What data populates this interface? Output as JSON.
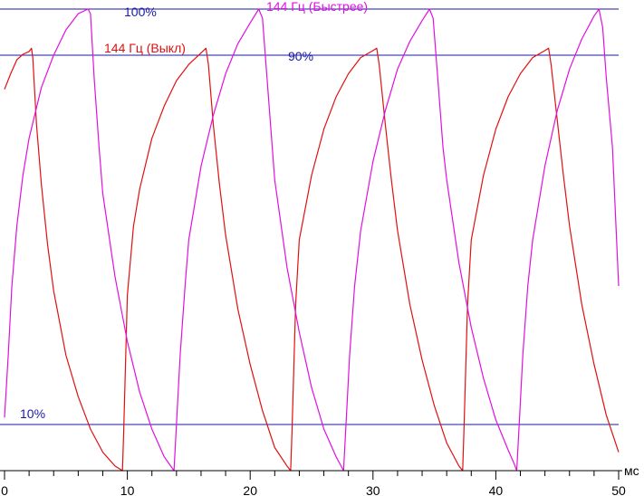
{
  "chart_data": {
    "type": "line",
    "xlim": [
      0,
      50
    ],
    "ylim": [
      0,
      100
    ],
    "x_ticks": [
      "0",
      "10",
      "20",
      "30",
      "40",
      "50"
    ],
    "x_unit": "мс",
    "grid": false,
    "reference_lines": [
      {
        "label": "100%",
        "value": 100,
        "color": "#1a1aa6"
      },
      {
        "label": "90%",
        "value": 90,
        "color": "#1a1aa6"
      },
      {
        "label": "10%",
        "value": 10,
        "color": "#1a1aa6"
      }
    ],
    "series": [
      {
        "name": "144 Гц (Выкл)",
        "color": "#e01010",
        "points": [
          [
            0,
            82.6
          ],
          [
            0.5,
            86.0
          ],
          [
            1.0,
            89.0
          ],
          [
            1.5,
            90.2
          ],
          [
            2.0,
            90.8
          ],
          [
            2.2,
            91.5
          ],
          [
            2.3,
            89.5
          ],
          [
            2.6,
            75.0
          ],
          [
            3.0,
            62.0
          ],
          [
            3.5,
            49.0
          ],
          [
            4.0,
            39.0
          ],
          [
            5.0,
            25.0
          ],
          [
            6.0,
            16.0
          ],
          [
            7.0,
            9.0
          ],
          [
            8.0,
            4.0
          ],
          [
            9.0,
            1.0
          ],
          [
            9.6,
            0.0
          ],
          [
            9.7,
            8.0
          ],
          [
            10.0,
            38.0
          ],
          [
            10.5,
            53.0
          ],
          [
            11.0,
            61.0
          ],
          [
            12.0,
            72.0
          ],
          [
            13.0,
            79.0
          ],
          [
            14.0,
            84.5
          ],
          [
            15.0,
            88.0
          ],
          [
            16.0,
            90.5
          ],
          [
            16.4,
            91.5
          ],
          [
            16.6,
            88.0
          ],
          [
            17.0,
            75.0
          ],
          [
            17.5,
            62.0
          ],
          [
            18.0,
            51.0
          ],
          [
            19.0,
            35.0
          ],
          [
            20.0,
            23.0
          ],
          [
            21.0,
            13.0
          ],
          [
            22.0,
            5.0
          ],
          [
            23.0,
            1.0
          ],
          [
            23.3,
            0.0
          ],
          [
            23.4,
            8.0
          ],
          [
            23.7,
            36.0
          ],
          [
            24.0,
            50.0
          ],
          [
            25.0,
            64.0
          ],
          [
            26.0,
            74.0
          ],
          [
            27.0,
            81.0
          ],
          [
            28.0,
            86.0
          ],
          [
            29.0,
            89.5
          ],
          [
            30.0,
            91.0
          ],
          [
            30.3,
            91.5
          ],
          [
            30.5,
            88.0
          ],
          [
            31.0,
            75.0
          ],
          [
            31.5,
            63.0
          ],
          [
            32.0,
            52.0
          ],
          [
            33.0,
            36.0
          ],
          [
            34.0,
            24.0
          ],
          [
            35.0,
            14.0
          ],
          [
            36.0,
            6.0
          ],
          [
            37.0,
            1.0
          ],
          [
            37.3,
            0.0
          ],
          [
            37.4,
            8.0
          ],
          [
            37.7,
            36.0
          ],
          [
            38.0,
            50.0
          ],
          [
            39.0,
            64.0
          ],
          [
            40.0,
            74.0
          ],
          [
            41.0,
            81.0
          ],
          [
            42.0,
            86.0
          ],
          [
            43.0,
            89.5
          ],
          [
            44.0,
            91.0
          ],
          [
            44.3,
            91.5
          ],
          [
            44.5,
            88.0
          ],
          [
            45.0,
            76.0
          ],
          [
            45.5,
            64.0
          ],
          [
            46.0,
            53.0
          ],
          [
            47.0,
            36.0
          ],
          [
            48.0,
            23.0
          ],
          [
            49.0,
            12.0
          ],
          [
            50.0,
            4.0
          ]
        ]
      },
      {
        "name": "144 Гц (Быстрее)",
        "color": "#e010e0",
        "points": [
          [
            0,
            11.5
          ],
          [
            0.3,
            25.0
          ],
          [
            0.6,
            40.0
          ],
          [
            1.0,
            53.0
          ],
          [
            1.5,
            64.0
          ],
          [
            2.0,
            72.0
          ],
          [
            3.0,
            83.0
          ],
          [
            4.0,
            90.0
          ],
          [
            5.0,
            95.5
          ],
          [
            6.0,
            99.0
          ],
          [
            6.8,
            100.0
          ],
          [
            7.0,
            99.0
          ],
          [
            7.3,
            85.0
          ],
          [
            7.7,
            70.0
          ],
          [
            8.0,
            60.0
          ],
          [
            9.0,
            42.0
          ],
          [
            10.0,
            28.0
          ],
          [
            11.0,
            17.0
          ],
          [
            12.0,
            9.0
          ],
          [
            13.0,
            3.0
          ],
          [
            13.8,
            0.0
          ],
          [
            14.0,
            10.0
          ],
          [
            14.3,
            25.0
          ],
          [
            14.7,
            40.0
          ],
          [
            15.0,
            50.0
          ],
          [
            16.0,
            66.0
          ],
          [
            17.0,
            77.0
          ],
          [
            18.0,
            86.0
          ],
          [
            19.0,
            92.5
          ],
          [
            20.0,
            97.0
          ],
          [
            20.7,
            100.0
          ],
          [
            21.0,
            98.0
          ],
          [
            21.4,
            84.0
          ],
          [
            21.8,
            70.0
          ],
          [
            22.0,
            63.0
          ],
          [
            23.0,
            44.0
          ],
          [
            24.0,
            30.0
          ],
          [
            25.0,
            18.0
          ],
          [
            26.0,
            9.0
          ],
          [
            27.0,
            3.0
          ],
          [
            27.6,
            0.0
          ],
          [
            27.8,
            10.0
          ],
          [
            28.1,
            25.0
          ],
          [
            28.5,
            40.0
          ],
          [
            29.0,
            52.0
          ],
          [
            30.0,
            67.0
          ],
          [
            31.0,
            78.0
          ],
          [
            32.0,
            87.0
          ],
          [
            33.0,
            93.0
          ],
          [
            34.0,
            97.5
          ],
          [
            34.6,
            100.0
          ],
          [
            34.9,
            98.0
          ],
          [
            35.3,
            84.0
          ],
          [
            35.7,
            70.0
          ],
          [
            36.0,
            63.0
          ],
          [
            37.0,
            45.0
          ],
          [
            38.0,
            31.0
          ],
          [
            39.0,
            20.0
          ],
          [
            40.0,
            11.0
          ],
          [
            41.0,
            4.5
          ],
          [
            41.5,
            1.5
          ],
          [
            41.7,
            0.0
          ],
          [
            41.9,
            10.0
          ],
          [
            42.2,
            25.0
          ],
          [
            42.6,
            40.0
          ],
          [
            43.0,
            50.0
          ],
          [
            44.0,
            66.0
          ],
          [
            45.0,
            78.0
          ],
          [
            46.0,
            87.0
          ],
          [
            47.0,
            93.5
          ],
          [
            48.0,
            98.5
          ],
          [
            48.4,
            100.0
          ],
          [
            48.7,
            96.0
          ],
          [
            49.0,
            85.0
          ],
          [
            49.5,
            70.0
          ],
          [
            50.0,
            40.0
          ]
        ]
      }
    ]
  }
}
